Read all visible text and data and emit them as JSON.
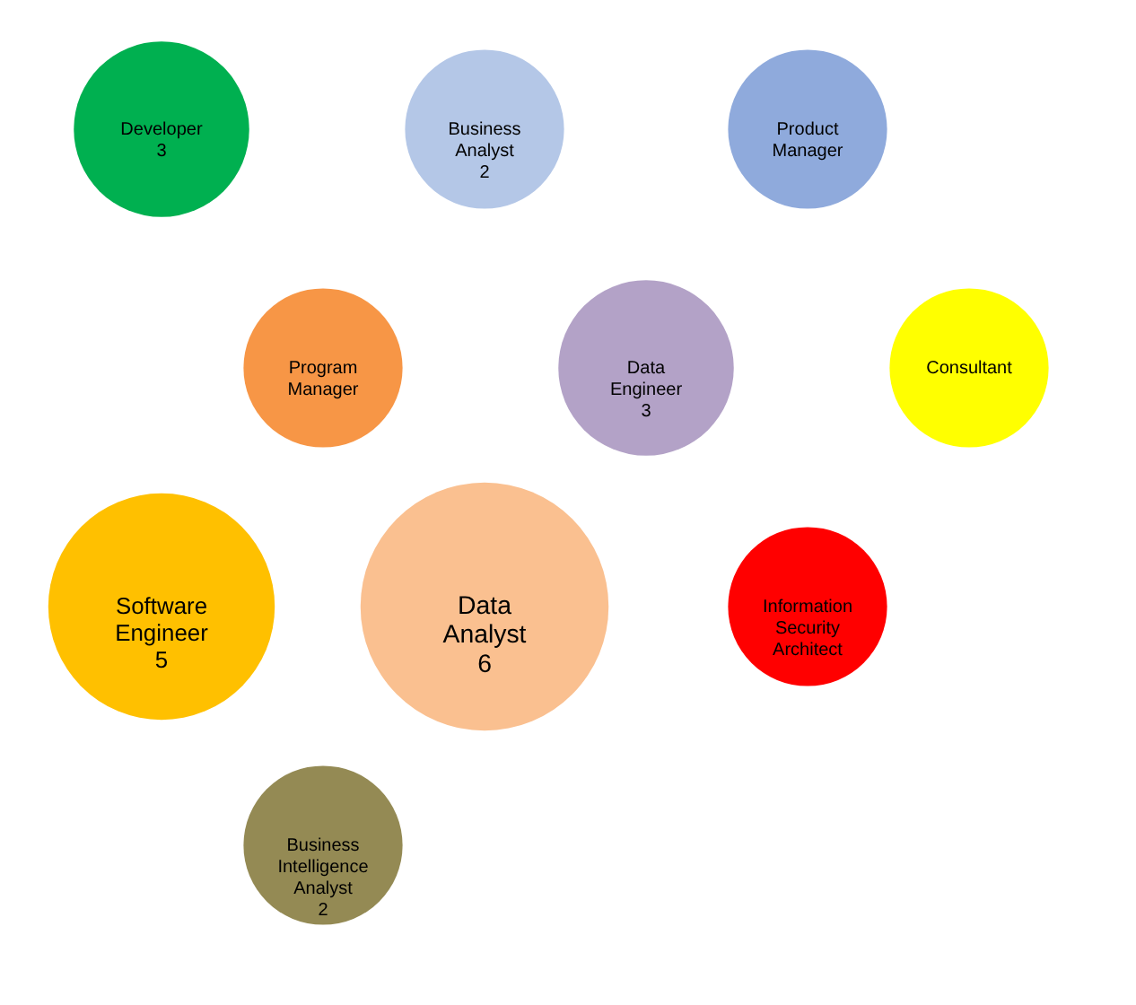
{
  "chart_data": {
    "type": "other",
    "categories": [
      "Developer",
      "Business Analyst",
      "Product Manager",
      "Program Manager",
      "Data Engineer",
      "Consultant",
      "Software Engineer",
      "Data Analyst",
      "Information Security Architect",
      "Business Intelligence Analyst"
    ],
    "values": [
      3,
      2,
      null,
      null,
      3,
      null,
      5,
      6,
      null,
      2
    ],
    "colors": [
      "#00b050",
      "#b4c7e7",
      "#8faadc",
      "#f79646",
      "#b3a2c7",
      "#ffff00",
      "#ffc000",
      "#fac090",
      "#ff0000",
      "#948a54"
    ],
    "data_labels": true
  }
}
